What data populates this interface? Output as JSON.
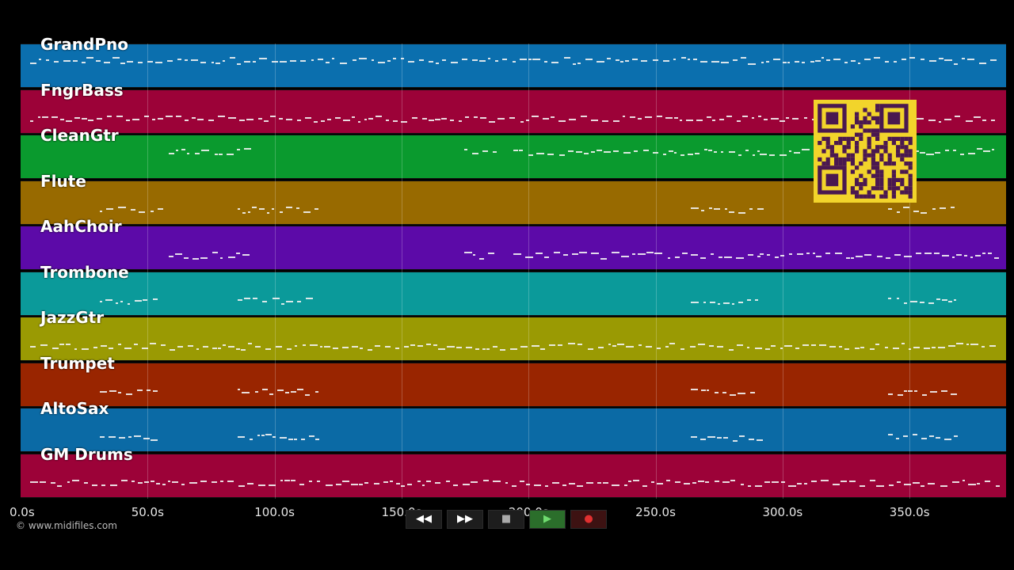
{
  "tracks": [
    {
      "name": "GrandPno",
      "color": "#0b6fae",
      "density": "dense",
      "band": "high"
    },
    {
      "name": "FngrBass",
      "color": "#9c0238",
      "density": "dense",
      "band": "mid"
    },
    {
      "name": "CleanGtr",
      "color": "#0a9a2e",
      "density": "sparse",
      "band": "high"
    },
    {
      "name": "Flute",
      "color": "#986a00",
      "density": "few",
      "band": "mid"
    },
    {
      "name": "AahChoir",
      "color": "#5c0aa8",
      "density": "sparse",
      "band": "mid"
    },
    {
      "name": "Trombone",
      "color": "#0b9a9a",
      "density": "few",
      "band": "mid"
    },
    {
      "name": "JazzGtr",
      "color": "#9a9a03",
      "density": "dense",
      "band": "mid"
    },
    {
      "name": "Trumpet",
      "color": "#992500",
      "density": "few",
      "band": "mid"
    },
    {
      "name": "AltoSax",
      "color": "#0b6aa5",
      "density": "few",
      "band": "mid"
    },
    {
      "name": "GM Drums",
      "color": "#9c0238",
      "density": "dense",
      "band": "mid"
    }
  ],
  "timeline": {
    "max_seconds": 388,
    "ticks": [
      {
        "label": "0.0s",
        "value": 0
      },
      {
        "label": "50.0s",
        "value": 50
      },
      {
        "label": "100.0s",
        "value": 100
      },
      {
        "label": "150.0s",
        "value": 150
      },
      {
        "label": "200.0s",
        "value": 200
      },
      {
        "label": "250.0s",
        "value": 250
      },
      {
        "label": "300.0s",
        "value": 300
      },
      {
        "label": "350.0s",
        "value": 350
      }
    ]
  },
  "transport": {
    "rewind": "◀◀",
    "fast_forward": "▶▶",
    "stop": "■",
    "play": "▶",
    "record": "●"
  },
  "copyright": "© www.midifiles.com"
}
